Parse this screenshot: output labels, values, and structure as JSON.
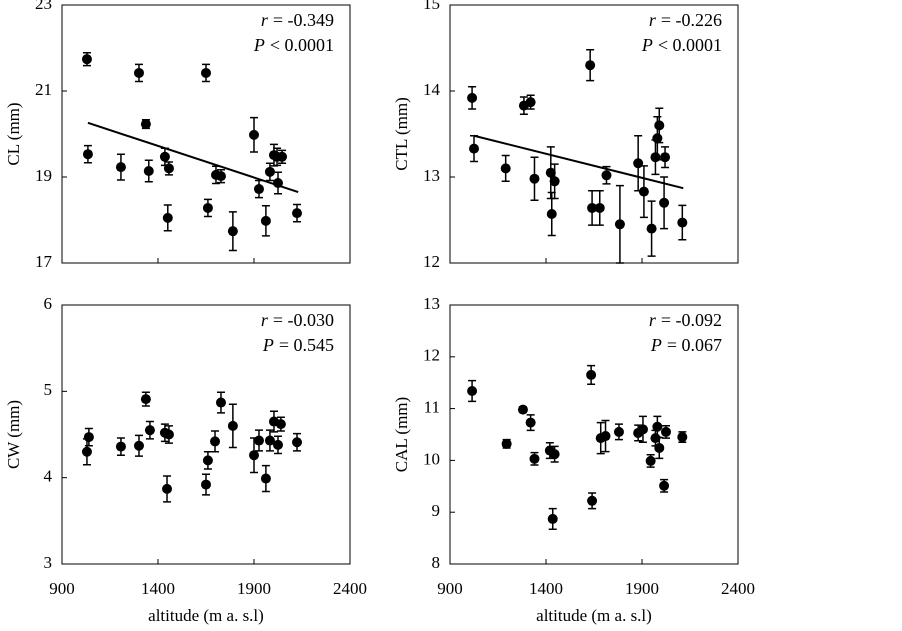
{
  "chart_data": [
    {
      "type": "scatter",
      "y_label": "CL (mm)",
      "color": "#000000",
      "annotations": [
        {
          "symbol": "r",
          "text": "= -0.349"
        },
        {
          "symbol": "P",
          "text": "< 0.0001"
        }
      ],
      "x": [
        1030,
        1035,
        1207,
        1301,
        1337,
        1352,
        1436,
        1451,
        1457,
        1650,
        1660,
        1702,
        1728,
        1790,
        1900,
        1926,
        1962,
        1983,
        2004,
        2025,
        2020,
        2046,
        2124
      ],
      "values": [
        21.74,
        19.53,
        19.23,
        21.42,
        20.23,
        19.14,
        19.47,
        18.05,
        19.2,
        21.42,
        18.28,
        19.05,
        19.02,
        17.74,
        19.98,
        18.72,
        17.98,
        19.12,
        19.51,
        18.86,
        19.47,
        19.47,
        18.16
      ],
      "errors": [
        0.15,
        0.2,
        0.3,
        0.2,
        0.1,
        0.25,
        0.2,
        0.3,
        0.15,
        0.2,
        0.2,
        0.2,
        0.15,
        0.45,
        0.4,
        0.2,
        0.35,
        0.2,
        0.25,
        0.25,
        0.2,
        0.15,
        0.2
      ],
      "trend": {
        "x": [
          1035,
          2130
        ],
        "y": [
          20.26,
          18.65
        ]
      },
      "xlim": [
        900,
        2400
      ],
      "xticks": [
        900,
        1400,
        1900,
        2400
      ],
      "xtick_labels": false,
      "ylim": [
        17,
        23
      ],
      "yticks": [
        17,
        19,
        21,
        23
      ]
    },
    {
      "type": "scatter",
      "y_label": "CTL (mm)",
      "color": "#000000",
      "annotations": [
        {
          "symbol": "r",
          "text": "= -0.226"
        },
        {
          "symbol": "P",
          "text": "< 0.0001"
        }
      ],
      "x": [
        1015,
        1025,
        1190,
        1285,
        1320,
        1340,
        1425,
        1430,
        1445,
        1630,
        1640,
        1680,
        1715,
        1785,
        1880,
        1910,
        1950,
        1970,
        1980,
        1990,
        2015,
        2020,
        2110
      ],
      "values": [
        13.92,
        13.33,
        13.1,
        13.83,
        13.87,
        12.98,
        13.05,
        12.57,
        12.95,
        14.3,
        12.64,
        12.64,
        13.02,
        12.45,
        13.16,
        12.83,
        12.4,
        13.23,
        13.45,
        13.6,
        12.7,
        13.23,
        12.47
      ],
      "errors": [
        0.13,
        0.15,
        0.15,
        0.1,
        0.08,
        0.25,
        0.3,
        0.25,
        0.2,
        0.18,
        0.2,
        0.2,
        0.1,
        0.45,
        0.32,
        0.3,
        0.32,
        0.2,
        0.25,
        0.2,
        0.3,
        0.12,
        0.2
      ],
      "trend": {
        "x": [
          1025,
          2115
        ],
        "y": [
          13.48,
          12.87
        ]
      },
      "xlim": [
        900,
        2400
      ],
      "xticks": [
        900,
        1400,
        1900,
        2400
      ],
      "xtick_labels": false,
      "ylim": [
        12,
        15
      ],
      "yticks": [
        12,
        13,
        14,
        15
      ]
    },
    {
      "type": "scatter",
      "y_label": "CW (mm)",
      "x_label": "altitude (m a. s.l)",
      "color": "#000000",
      "annotations": [
        {
          "symbol": "r",
          "text": "= -0.030"
        },
        {
          "symbol": "P",
          "text": "= 0.545"
        }
      ],
      "x": [
        1030,
        1040,
        1207,
        1301,
        1337,
        1358,
        1436,
        1457,
        1447,
        1650,
        1660,
        1697,
        1728,
        1790,
        1900,
        1926,
        1962,
        1983,
        2004,
        2025,
        2040,
        2124
      ],
      "values": [
        4.3,
        4.47,
        4.36,
        4.37,
        4.91,
        4.55,
        4.52,
        4.5,
        3.87,
        3.92,
        4.2,
        4.42,
        4.87,
        4.6,
        4.26,
        4.43,
        3.99,
        4.43,
        4.65,
        4.38,
        4.62,
        4.41
      ],
      "errors": [
        0.15,
        0.1,
        0.1,
        0.12,
        0.08,
        0.1,
        0.1,
        0.1,
        0.15,
        0.12,
        0.1,
        0.12,
        0.12,
        0.25,
        0.2,
        0.12,
        0.15,
        0.12,
        0.12,
        0.1,
        0.08,
        0.1
      ],
      "xlim": [
        900,
        2400
      ],
      "xticks": [
        900,
        1400,
        1900,
        2400
      ],
      "xtick_labels": true,
      "ylim": [
        3,
        6
      ],
      "yticks": [
        3,
        4,
        5,
        6
      ]
    },
    {
      "type": "scatter",
      "y_label": "CAL (mm)",
      "x_label": "altitude (m a. s.l)",
      "color": "#000000",
      "annotations": [
        {
          "symbol": "r",
          "text": "= -0.092"
        },
        {
          "symbol": "P",
          "text": "= 0.067"
        }
      ],
      "x": [
        1015,
        1195,
        1280,
        1320,
        1340,
        1420,
        1435,
        1445,
        1635,
        1640,
        1685,
        1710,
        1780,
        1880,
        1905,
        1945,
        1970,
        1980,
        1990,
        2015,
        2025,
        2110
      ],
      "values": [
        11.34,
        10.32,
        10.98,
        10.73,
        10.03,
        10.19,
        8.87,
        10.12,
        11.65,
        9.22,
        10.43,
        10.47,
        10.55,
        10.53,
        10.6,
        9.99,
        10.43,
        10.65,
        10.24,
        9.51,
        10.55,
        10.45
      ],
      "errors": [
        0.2,
        0.08,
        0.05,
        0.15,
        0.12,
        0.15,
        0.2,
        0.15,
        0.18,
        0.15,
        0.3,
        0.3,
        0.15,
        0.15,
        0.25,
        0.12,
        0.15,
        0.2,
        0.2,
        0.12,
        0.12,
        0.1
      ],
      "xlim": [
        900,
        2400
      ],
      "xticks": [
        900,
        1400,
        1900,
        2400
      ],
      "xtick_labels": true,
      "ylim": [
        8,
        13
      ],
      "yticks": [
        8,
        9,
        10,
        11,
        12,
        13
      ]
    }
  ]
}
